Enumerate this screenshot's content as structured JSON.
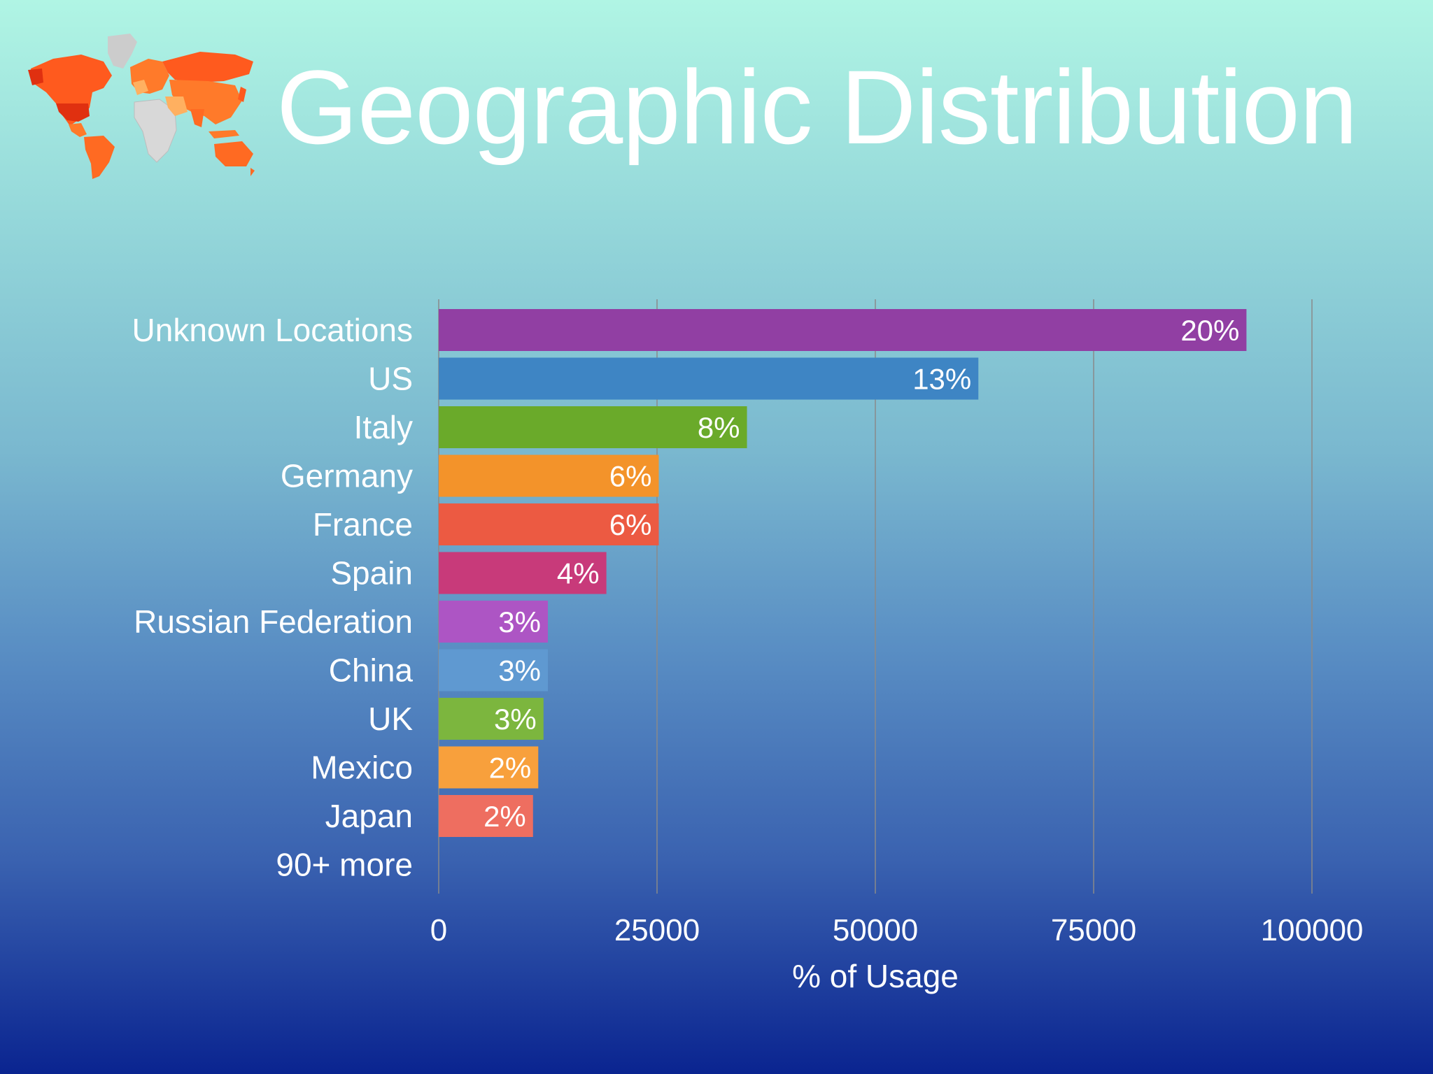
{
  "slide": {
    "title": "Geographic Distribution"
  },
  "logo": {
    "icon": "world-map-icon",
    "colors": [
      "#ff5a1e",
      "#ff7a2a",
      "#e83a10",
      "#ffb060",
      "#cccccc"
    ]
  },
  "chart_data": {
    "type": "bar",
    "orientation": "horizontal",
    "title": "",
    "xlabel": "% of Usage",
    "ylabel": "",
    "xlim": [
      0,
      100000
    ],
    "xticks": [
      0,
      25000,
      50000,
      75000,
      100000
    ],
    "grid": true,
    "categories": [
      "Unknown Locations",
      "US",
      "Italy",
      "Germany",
      "France",
      "Spain",
      "Russian Federation",
      "China",
      "UK",
      "Mexico",
      "Japan",
      "90+ more"
    ],
    "values": [
      92500,
      61800,
      35300,
      25200,
      25200,
      19200,
      12500,
      12500,
      12000,
      11400,
      10800,
      null
    ],
    "data_labels": [
      "20%",
      "13%",
      "8%",
      "6%",
      "6%",
      "4%",
      "3%",
      "3%",
      "3%",
      "2%",
      "2%",
      ""
    ],
    "colors": [
      "#913fa3",
      "#3e85c4",
      "#6aaa2a",
      "#f3932a",
      "#ec5a42",
      "#c83a7a",
      "#ad55c4",
      "#5f99d1",
      "#7cb63e",
      "#f8a03c",
      "#ee6e60",
      ""
    ]
  }
}
